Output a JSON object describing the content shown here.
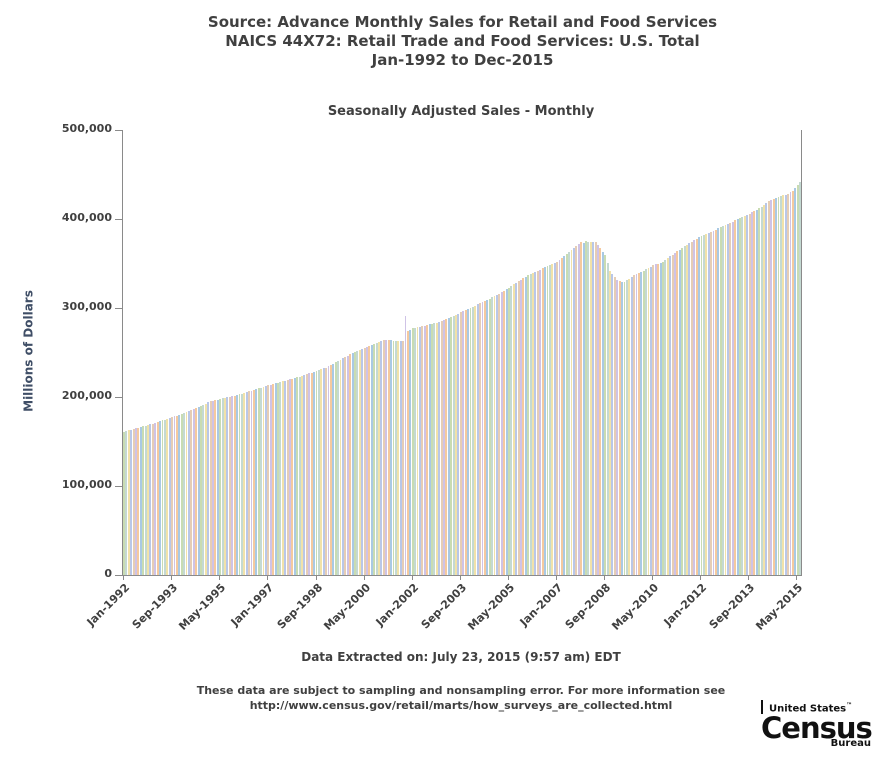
{
  "header": {
    "line1": "Source: Advance Monthly Sales for Retail and Food Services",
    "line2": "NAICS 44X72: Retail Trade and Food Services: U.S. Total",
    "line3": "Jan-1992 to Dec-2015"
  },
  "chart": {
    "subtitle": "Seasonally Adjusted Sales - Monthly",
    "ylabel": "Millions of Dollars"
  },
  "footer": {
    "extracted": "Data Extracted on: July 23, 2015 (9:57 am) EDT",
    "note1": "These data are subject to sampling and nonsampling error. For more information see",
    "note2": "http://www.census.gov/retail/marts/how_surveys_are_collected.html"
  },
  "logo": {
    "country": "United States",
    "trademark": "™",
    "name": "Census",
    "unit": "Bureau"
  },
  "colors": {
    "title_text": "#404040",
    "tick_text": "#404040",
    "ylabel_text": "#3f4e66",
    "axis_line": "#8a8a8a"
  },
  "chart_data": {
    "type": "bar",
    "title": "Seasonally Adjusted Sales - Monthly",
    "xlabel": "",
    "ylabel": "Millions of Dollars",
    "ylim": [
      0,
      500000
    ],
    "y_ticks": [
      0,
      100000,
      200000,
      300000,
      400000,
      500000
    ],
    "grid": false,
    "legend": false,
    "x_start": "Jan-1992",
    "x_end": "Jun-2015",
    "x_tick_every": 20,
    "x_tick_labels": [
      "Jan-1992",
      "Sep-1993",
      "May-1995",
      "Jan-1997",
      "Sep-1998",
      "May-2000",
      "Jan-2002",
      "Sep-2003",
      "May-2005",
      "Jan-2007",
      "Sep-2008",
      "May-2010",
      "Jan-2012",
      "Sep-2013",
      "May-2015"
    ],
    "bar_colors": [
      "#f5c99e",
      "#b9c7e8",
      "#c9dcb2",
      "#cfc3e6",
      "#f1e2a9",
      "#a9c9e4",
      "#e6cdb5",
      "#c4d9d2"
    ],
    "values": [
      161000,
      161750,
      162500,
      163250,
      164000,
      164750,
      165500,
      166250,
      167000,
      167750,
      168500,
      169250,
      170000,
      170900,
      171800,
      172750,
      173650,
      174600,
      175500,
      176400,
      177350,
      178250,
      179150,
      180100,
      181000,
      182150,
      183350,
      184500,
      185650,
      186850,
      188000,
      189150,
      190350,
      191500,
      192650,
      193850,
      195000,
      195650,
      196350,
      197000,
      197650,
      198350,
      199000,
      199650,
      200350,
      201000,
      201650,
      202350,
      203000,
      203850,
      204650,
      205500,
      206350,
      207150,
      208000,
      208850,
      209650,
      210500,
      211350,
      212150,
      213000,
      213750,
      214500,
      215250,
      216000,
      216750,
      217500,
      218250,
      219000,
      219750,
      220500,
      221250,
      222000,
      222900,
      223850,
      224750,
      225650,
      226600,
      227500,
      228400,
      229350,
      230250,
      231150,
      232100,
      233000,
      234500,
      236000,
      237500,
      239000,
      240500,
      242000,
      243500,
      245000,
      246500,
      248000,
      249500,
      251000,
      252100,
      253150,
      254250,
      255350,
      256400,
      257500,
      258600,
      259650,
      260750,
      261850,
      262900,
      264000,
      263900,
      263750,
      263650,
      263500,
      263350,
      263250,
      263100,
      263000,
      291000,
      274000,
      275500,
      277000,
      277650,
      278350,
      279000,
      279650,
      280350,
      281000,
      281650,
      282350,
      283000,
      283650,
      284350,
      285000,
      286250,
      287500,
      288750,
      290000,
      291250,
      292500,
      293750,
      295000,
      296250,
      297500,
      298750,
      300000,
      301350,
      302650,
      304000,
      305350,
      306650,
      308000,
      309350,
      310650,
      312000,
      313350,
      314650,
      316000,
      317750,
      319500,
      321250,
      323000,
      324750,
      326500,
      328250,
      330000,
      331750,
      333500,
      335250,
      337000,
      338250,
      339500,
      340750,
      342000,
      343250,
      344500,
      345750,
      347000,
      348250,
      349500,
      350750,
      352000,
      354200,
      356400,
      358600,
      360800,
      363000,
      365200,
      367400,
      369600,
      371800,
      374000,
      373400,
      374800,
      374300,
      373700,
      374500,
      374000,
      370500,
      367000,
      363500,
      360000,
      351000,
      342000,
      338350,
      334650,
      331000,
      330350,
      329650,
      329000,
      331000,
      333000,
      335000,
      337000,
      338250,
      339500,
      340750,
      342000,
      343500,
      345000,
      346500,
      348000,
      349000,
      350000,
      351000,
      352000,
      354000,
      356000,
      358000,
      360000,
      361850,
      363650,
      365500,
      367350,
      369150,
      371000,
      372650,
      374350,
      376000,
      377650,
      379350,
      381000,
      382150,
      383350,
      384500,
      385650,
      386850,
      388000,
      389350,
      390650,
      392000,
      393350,
      394650,
      396000,
      397150,
      398350,
      399500,
      400650,
      401850,
      403000,
      404500,
      406000,
      407500,
      409000,
      410500,
      412000,
      414000,
      416000,
      418000,
      420000,
      421250,
      422500,
      423750,
      425000,
      425750,
      426500,
      427250,
      428000,
      430000,
      432000,
      435000,
      438000,
      442000
    ]
  }
}
